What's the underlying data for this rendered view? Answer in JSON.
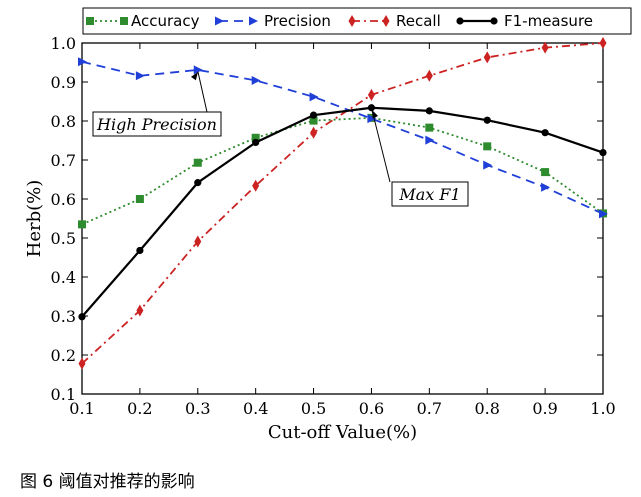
{
  "chart_data": {
    "type": "line",
    "xlabel": "Cut-off Value(%)",
    "ylabel": "Herb(%)",
    "x": [
      0.1,
      0.2,
      0.3,
      0.4,
      0.5,
      0.6,
      0.7,
      0.8,
      0.9,
      1.0
    ],
    "xlim": [
      0.1,
      1.0
    ],
    "ylim": [
      0.1,
      1.0
    ],
    "xticks": [
      "0.1",
      "0.2",
      "0.3",
      "0.4",
      "0.5",
      "0.6",
      "0.7",
      "0.8",
      "0.9",
      "1.0"
    ],
    "yticks": [
      "0.1",
      "0.2",
      "0.3",
      "0.4",
      "0.5",
      "0.6",
      "0.7",
      "0.8",
      "0.9",
      "1.0"
    ],
    "grid": false,
    "legend_position": "top",
    "series": [
      {
        "name": "Accuracy",
        "color": "#2e8b2e",
        "style": "dotted",
        "marker": "square",
        "values": [
          0.535,
          0.6,
          0.693,
          0.757,
          0.801,
          0.808,
          0.783,
          0.735,
          0.669,
          0.563
        ]
      },
      {
        "name": "Precision",
        "color": "#1f3fd8",
        "style": "dashed",
        "marker": "triangle-right",
        "values": [
          0.952,
          0.916,
          0.931,
          0.904,
          0.862,
          0.806,
          0.751,
          0.687,
          0.63,
          0.562
        ]
      },
      {
        "name": "Recall",
        "color": "#cc2222",
        "style": "dashdot",
        "marker": "diamond",
        "values": [
          0.178,
          0.314,
          0.491,
          0.634,
          0.77,
          0.867,
          0.916,
          0.963,
          0.988,
          1.0
        ]
      },
      {
        "name": "F1-measure",
        "color": "#000000",
        "style": "solid",
        "marker": "circle",
        "values": [
          0.298,
          0.468,
          0.642,
          0.745,
          0.815,
          0.834,
          0.826,
          0.802,
          0.77,
          0.719
        ]
      }
    ],
    "annotations": [
      {
        "text": "High Precision",
        "point": [
          0.3,
          0.931
        ]
      },
      {
        "text": "Max F1",
        "point": [
          0.6,
          0.834
        ]
      }
    ]
  },
  "caption": "图 6 阈值对推荐的影响"
}
